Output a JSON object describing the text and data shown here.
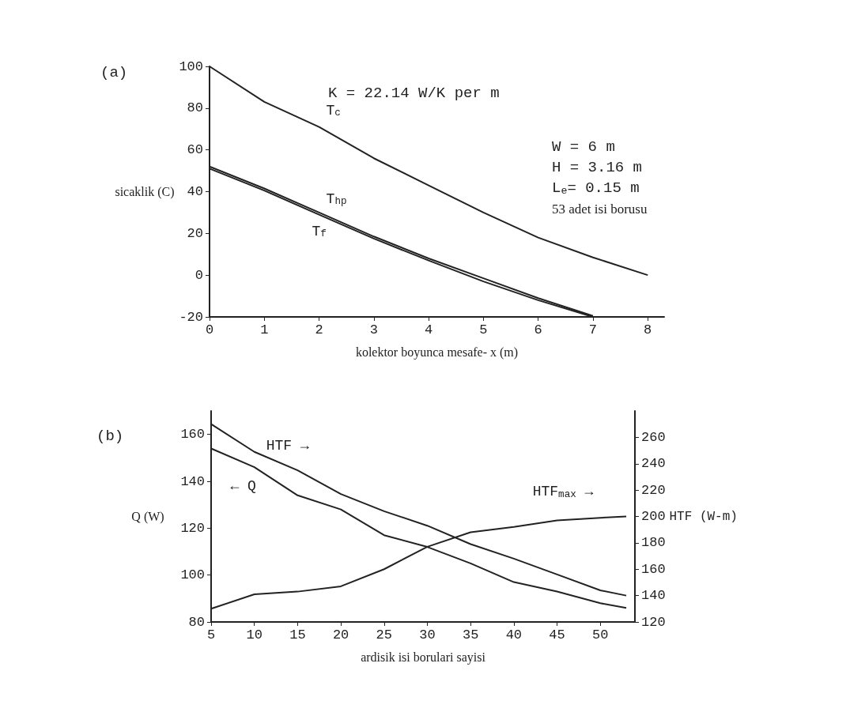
{
  "chart_data": [
    {
      "type": "line",
      "xlabel": "kolektor boyunca mesafe- x (m)",
      "ylabel": "sicaklik (C)",
      "xlim": [
        0,
        8.3
      ],
      "xticks": [
        0,
        1,
        2,
        3,
        4,
        5,
        6,
        7,
        8
      ],
      "ylim": [
        -20,
        100
      ],
      "yticks": [
        -20,
        0,
        20,
        40,
        60,
        80,
        100
      ],
      "series": [
        {
          "name": "T$_{c}$",
          "color": "#222222",
          "x": [
            0,
            1,
            2,
            3,
            4,
            5,
            6,
            7,
            8
          ],
          "values": [
            100,
            83,
            71,
            56,
            43,
            30,
            18,
            8.5,
            0
          ]
        },
        {
          "name": "T$_{hp}$",
          "color": "#222222",
          "x": [
            0,
            1,
            2,
            3,
            4,
            5,
            6,
            7
          ],
          "values": [
            52,
            41.5,
            30,
            18.5,
            8,
            -1.5,
            -11,
            -19.5
          ]
        },
        {
          "name": "T$_{f}$",
          "color": "#222222",
          "x": [
            0,
            1,
            2,
            3,
            4,
            5,
            6,
            7
          ],
          "values": [
            51,
            40.5,
            29,
            17.5,
            7,
            -3,
            -12,
            -20
          ]
        }
      ],
      "annotations": [
        "(a)",
        "K = 22.14 W/K per m",
        "W = 6 m",
        "H = 3.16 m",
        "L$_{e}$= 0.15 m",
        "53 adet isi borusu"
      ]
    },
    {
      "type": "line",
      "xlabel": "ardisik isi borulari sayisi",
      "ylabel": "Q (W)",
      "y2label": "HTF (W-m)",
      "xlim": [
        5,
        54
      ],
      "xticks": [
        5,
        10,
        15,
        20,
        25,
        30,
        35,
        40,
        45,
        50
      ],
      "ylim": [
        80,
        170
      ],
      "yticks": [
        80,
        100,
        120,
        140,
        160
      ],
      "y2lim": [
        120,
        280
      ],
      "y2ticks": [
        120,
        140,
        160,
        180,
        200,
        220,
        240,
        260
      ],
      "series": [
        {
          "name": "HTF →",
          "color": "#222222",
          "axis": "y2",
          "x": [
            5,
            10,
            15,
            20,
            25,
            30,
            35,
            40,
            45,
            50,
            53
          ],
          "values": [
            270,
            249,
            235,
            217,
            204,
            193,
            179,
            168,
            156,
            144,
            140
          ]
        },
        {
          "name": "← Q",
          "color": "#222222",
          "x": [
            5,
            10,
            15,
            20,
            25,
            30,
            35,
            40,
            45,
            50,
            53
          ],
          "values": [
            154,
            146,
            134,
            128,
            117,
            112,
            105,
            97,
            93,
            88,
            86
          ]
        },
        {
          "name": "HTF$_{max}$ →",
          "color": "#222222",
          "axis": "y2",
          "x": [
            5,
            10,
            15,
            20,
            25,
            30,
            35,
            40,
            45,
            50,
            53
          ],
          "values": [
            130,
            141,
            143,
            147,
            160,
            177,
            188,
            192,
            197,
            199,
            200
          ]
        }
      ],
      "annotations": [
        "(b)"
      ]
    }
  ]
}
